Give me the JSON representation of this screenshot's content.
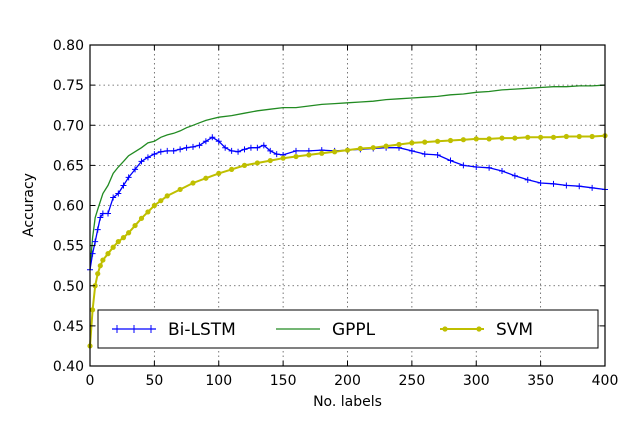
{
  "chart_data": {
    "type": "line",
    "title": "",
    "xlabel": "No. labels",
    "ylabel": "Accuracy",
    "xlim": [
      0,
      400
    ],
    "ylim": [
      0.4,
      0.8
    ],
    "x_ticks": [
      "0",
      "50",
      "100",
      "150",
      "200",
      "250",
      "300",
      "350",
      "400"
    ],
    "y_ticks": [
      "0.40",
      "0.45",
      "0.50",
      "0.55",
      "0.60",
      "0.65",
      "0.70",
      "0.75",
      "0.80"
    ],
    "grid": true,
    "legend_position": "bottom",
    "series": [
      {
        "name": "Bi-LSTM",
        "color": "#0000ff",
        "marker": "plus",
        "x": [
          0,
          2,
          4,
          6,
          8,
          10,
          14,
          18,
          22,
          26,
          30,
          35,
          40,
          45,
          50,
          55,
          60,
          65,
          70,
          75,
          80,
          85,
          90,
          95,
          100,
          105,
          110,
          115,
          120,
          125,
          130,
          135,
          140,
          145,
          150,
          160,
          170,
          180,
          190,
          200,
          210,
          220,
          230,
          240,
          250,
          260,
          270,
          280,
          290,
          300,
          310,
          320,
          330,
          340,
          350,
          360,
          370,
          380,
          390,
          400
        ],
        "y": [
          0.52,
          0.54,
          0.555,
          0.57,
          0.585,
          0.59,
          0.59,
          0.61,
          0.615,
          0.625,
          0.635,
          0.645,
          0.655,
          0.66,
          0.664,
          0.667,
          0.668,
          0.668,
          0.67,
          0.672,
          0.673,
          0.675,
          0.68,
          0.685,
          0.68,
          0.672,
          0.668,
          0.667,
          0.67,
          0.672,
          0.672,
          0.675,
          0.668,
          0.664,
          0.663,
          0.668,
          0.668,
          0.669,
          0.668,
          0.669,
          0.67,
          0.671,
          0.672,
          0.672,
          0.668,
          0.664,
          0.663,
          0.656,
          0.65,
          0.648,
          0.647,
          0.643,
          0.637,
          0.632,
          0.628,
          0.627,
          0.625,
          0.624,
          0.622,
          0.62
        ]
      },
      {
        "name": "GPPL",
        "color": "#228b22",
        "marker": "none",
        "x": [
          0,
          2,
          4,
          6,
          8,
          10,
          14,
          18,
          22,
          26,
          30,
          35,
          40,
          45,
          50,
          55,
          60,
          65,
          70,
          75,
          80,
          85,
          90,
          95,
          100,
          110,
          120,
          130,
          140,
          150,
          160,
          170,
          180,
          190,
          200,
          210,
          220,
          230,
          240,
          250,
          260,
          270,
          280,
          290,
          300,
          310,
          320,
          330,
          340,
          350,
          360,
          370,
          380,
          390,
          400
        ],
        "y": [
          0.52,
          0.56,
          0.585,
          0.595,
          0.605,
          0.615,
          0.625,
          0.64,
          0.648,
          0.655,
          0.662,
          0.667,
          0.672,
          0.678,
          0.68,
          0.685,
          0.688,
          0.69,
          0.693,
          0.697,
          0.7,
          0.703,
          0.706,
          0.708,
          0.71,
          0.712,
          0.715,
          0.718,
          0.72,
          0.722,
          0.722,
          0.724,
          0.726,
          0.727,
          0.728,
          0.729,
          0.73,
          0.732,
          0.733,
          0.734,
          0.735,
          0.736,
          0.738,
          0.739,
          0.741,
          0.742,
          0.744,
          0.745,
          0.746,
          0.747,
          0.748,
          0.748,
          0.749,
          0.749,
          0.75
        ]
      },
      {
        "name": "SVM",
        "color": "#bfbf00",
        "marker": "dot",
        "x": [
          0,
          2,
          4,
          6,
          8,
          10,
          14,
          18,
          22,
          26,
          30,
          35,
          40,
          45,
          50,
          55,
          60,
          70,
          80,
          90,
          100,
          110,
          120,
          130,
          140,
          150,
          160,
          170,
          180,
          190,
          200,
          210,
          220,
          230,
          240,
          250,
          260,
          270,
          280,
          290,
          300,
          310,
          320,
          330,
          340,
          350,
          360,
          370,
          380,
          390,
          400
        ],
        "y": [
          0.425,
          0.47,
          0.5,
          0.515,
          0.525,
          0.532,
          0.54,
          0.548,
          0.555,
          0.56,
          0.566,
          0.575,
          0.584,
          0.592,
          0.6,
          0.606,
          0.612,
          0.62,
          0.628,
          0.634,
          0.64,
          0.645,
          0.65,
          0.653,
          0.656,
          0.659,
          0.661,
          0.663,
          0.665,
          0.667,
          0.669,
          0.671,
          0.672,
          0.674,
          0.676,
          0.678,
          0.679,
          0.68,
          0.681,
          0.682,
          0.683,
          0.683,
          0.684,
          0.684,
          0.685,
          0.685,
          0.685,
          0.686,
          0.686,
          0.686,
          0.687
        ]
      }
    ]
  }
}
